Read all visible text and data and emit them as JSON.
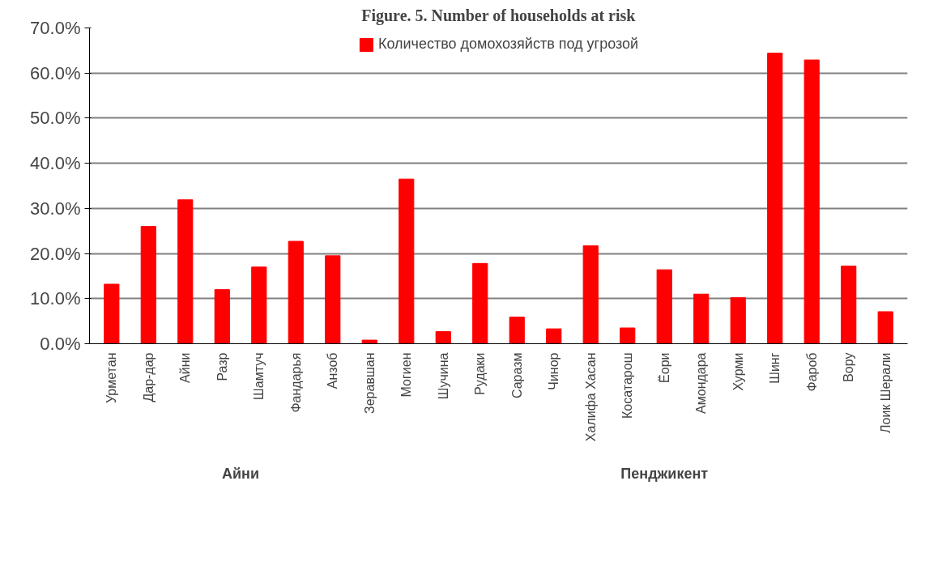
{
  "chart_data": {
    "type": "bar",
    "title": "Figure. 5. Number of households at risk",
    "categories": [
      "Урметан",
      "Дар-дар",
      "Айни",
      "Разр",
      "Шамтуч",
      "Фандарья",
      "Анзоб",
      "Зеравшан",
      "Могиен",
      "Шучина",
      "Рудаки",
      "Саразм",
      "Чинор",
      "Халифа Хасан",
      "Косатарош",
      "Ёори",
      "Амондара",
      "Хурми",
      "Шинг",
      "Фароб",
      "Вору",
      "Лоик Шерали"
    ],
    "series": [
      {
        "name": "Количество домохозяйств под угрозой",
        "color": "#ff0000",
        "values": [
          13.2,
          26.0,
          31.9,
          12.0,
          17.0,
          22.7,
          19.5,
          0.8,
          36.5,
          2.7,
          17.8,
          5.9,
          3.3,
          21.7,
          3.5,
          16.4,
          11.0,
          10.2,
          64.4,
          62.9,
          17.2,
          7.1
        ]
      }
    ],
    "ylim": [
      0,
      70
    ],
    "yticks": [
      {
        "value": 0,
        "label": "0.0%"
      },
      {
        "value": 10,
        "label": "10.0%"
      },
      {
        "value": 20,
        "label": "20.0%"
      },
      {
        "value": 30,
        "label": "30.0%"
      },
      {
        "value": 40,
        "label": "40.0%"
      },
      {
        "value": 50,
        "label": "50.0%"
      },
      {
        "value": 60,
        "label": "60.0%"
      },
      {
        "value": 70,
        "label": "70.0%"
      }
    ],
    "grid": "y",
    "legend": "top",
    "annotations": [
      "Айни",
      "Пенджикент"
    ]
  }
}
